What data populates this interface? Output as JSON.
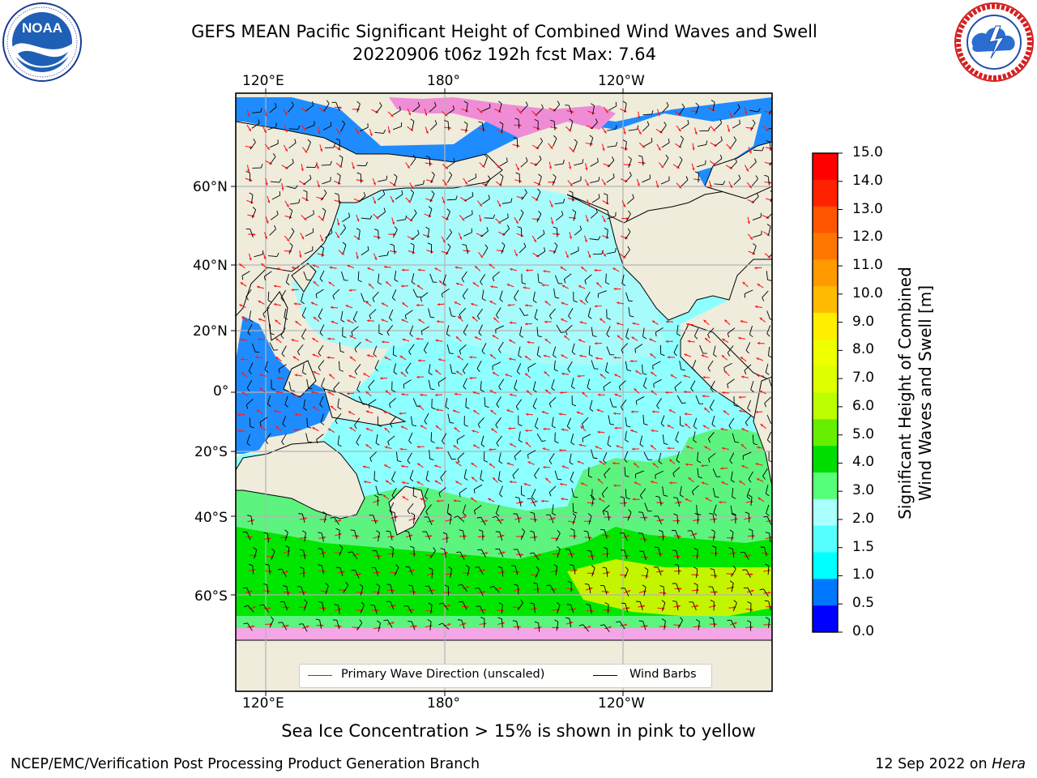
{
  "header": {
    "title_line1": "GEFS MEAN Pacific Significant Height of Combined Wind Waves and Swell",
    "title_line2": "20220906 t06z 192h fcst   Max: 7.64"
  },
  "logos": {
    "left": "NOAA",
    "left_ring_text": "NATIONAL OCEANIC AND ATMOSPHERIC ADMINISTRATION · U.S. DEPARTMENT OF COMMERCE",
    "right_ring_text": "NATIONAL WEATHER SERVICE"
  },
  "map": {
    "top_lon_labels": [
      "120°E",
      "180°",
      "120°W"
    ],
    "bottom_lon_labels": [
      "120°E",
      "180°",
      "120°W"
    ],
    "lat_labels": [
      "60°N",
      "40°N",
      "20°N",
      "0°",
      "20°S",
      "40°S",
      "60°S"
    ],
    "legend": {
      "wave_direction": "Primary Wave Direction (unscaled)",
      "wind_barbs": "Wind Barbs"
    }
  },
  "colorbar": {
    "label_line1": "Significant Height of Combined",
    "label_line2": "Wind Waves and Swell [m]",
    "ticks": [
      "15.0",
      "14.0",
      "13.0",
      "12.0",
      "11.0",
      "10.0",
      "9.0",
      "8.0",
      "7.0",
      "6.0",
      "5.0",
      "4.0",
      "3.0",
      "2.0",
      "1.5",
      "1.0",
      "0.5",
      "0.0"
    ],
    "colors": [
      "#ff0000",
      "#ff2200",
      "#ff5500",
      "#ff7700",
      "#ff9900",
      "#ffbb00",
      "#ffee00",
      "#eeff00",
      "#ddff00",
      "#bbff00",
      "#66ee00",
      "#00dd00",
      "#55ff77",
      "#aaffff",
      "#55ffff",
      "#00ffff",
      "#0077ff",
      "#0000ff"
    ]
  },
  "notes": {
    "sea_ice": "Sea Ice Concentration > 15% is shown in pink to yellow"
  },
  "footer": {
    "left": "NCEP/EMC/Verification Post Processing Product Generation Branch",
    "right_date": "12 Sep 2022 on ",
    "right_host": "Hera"
  }
}
